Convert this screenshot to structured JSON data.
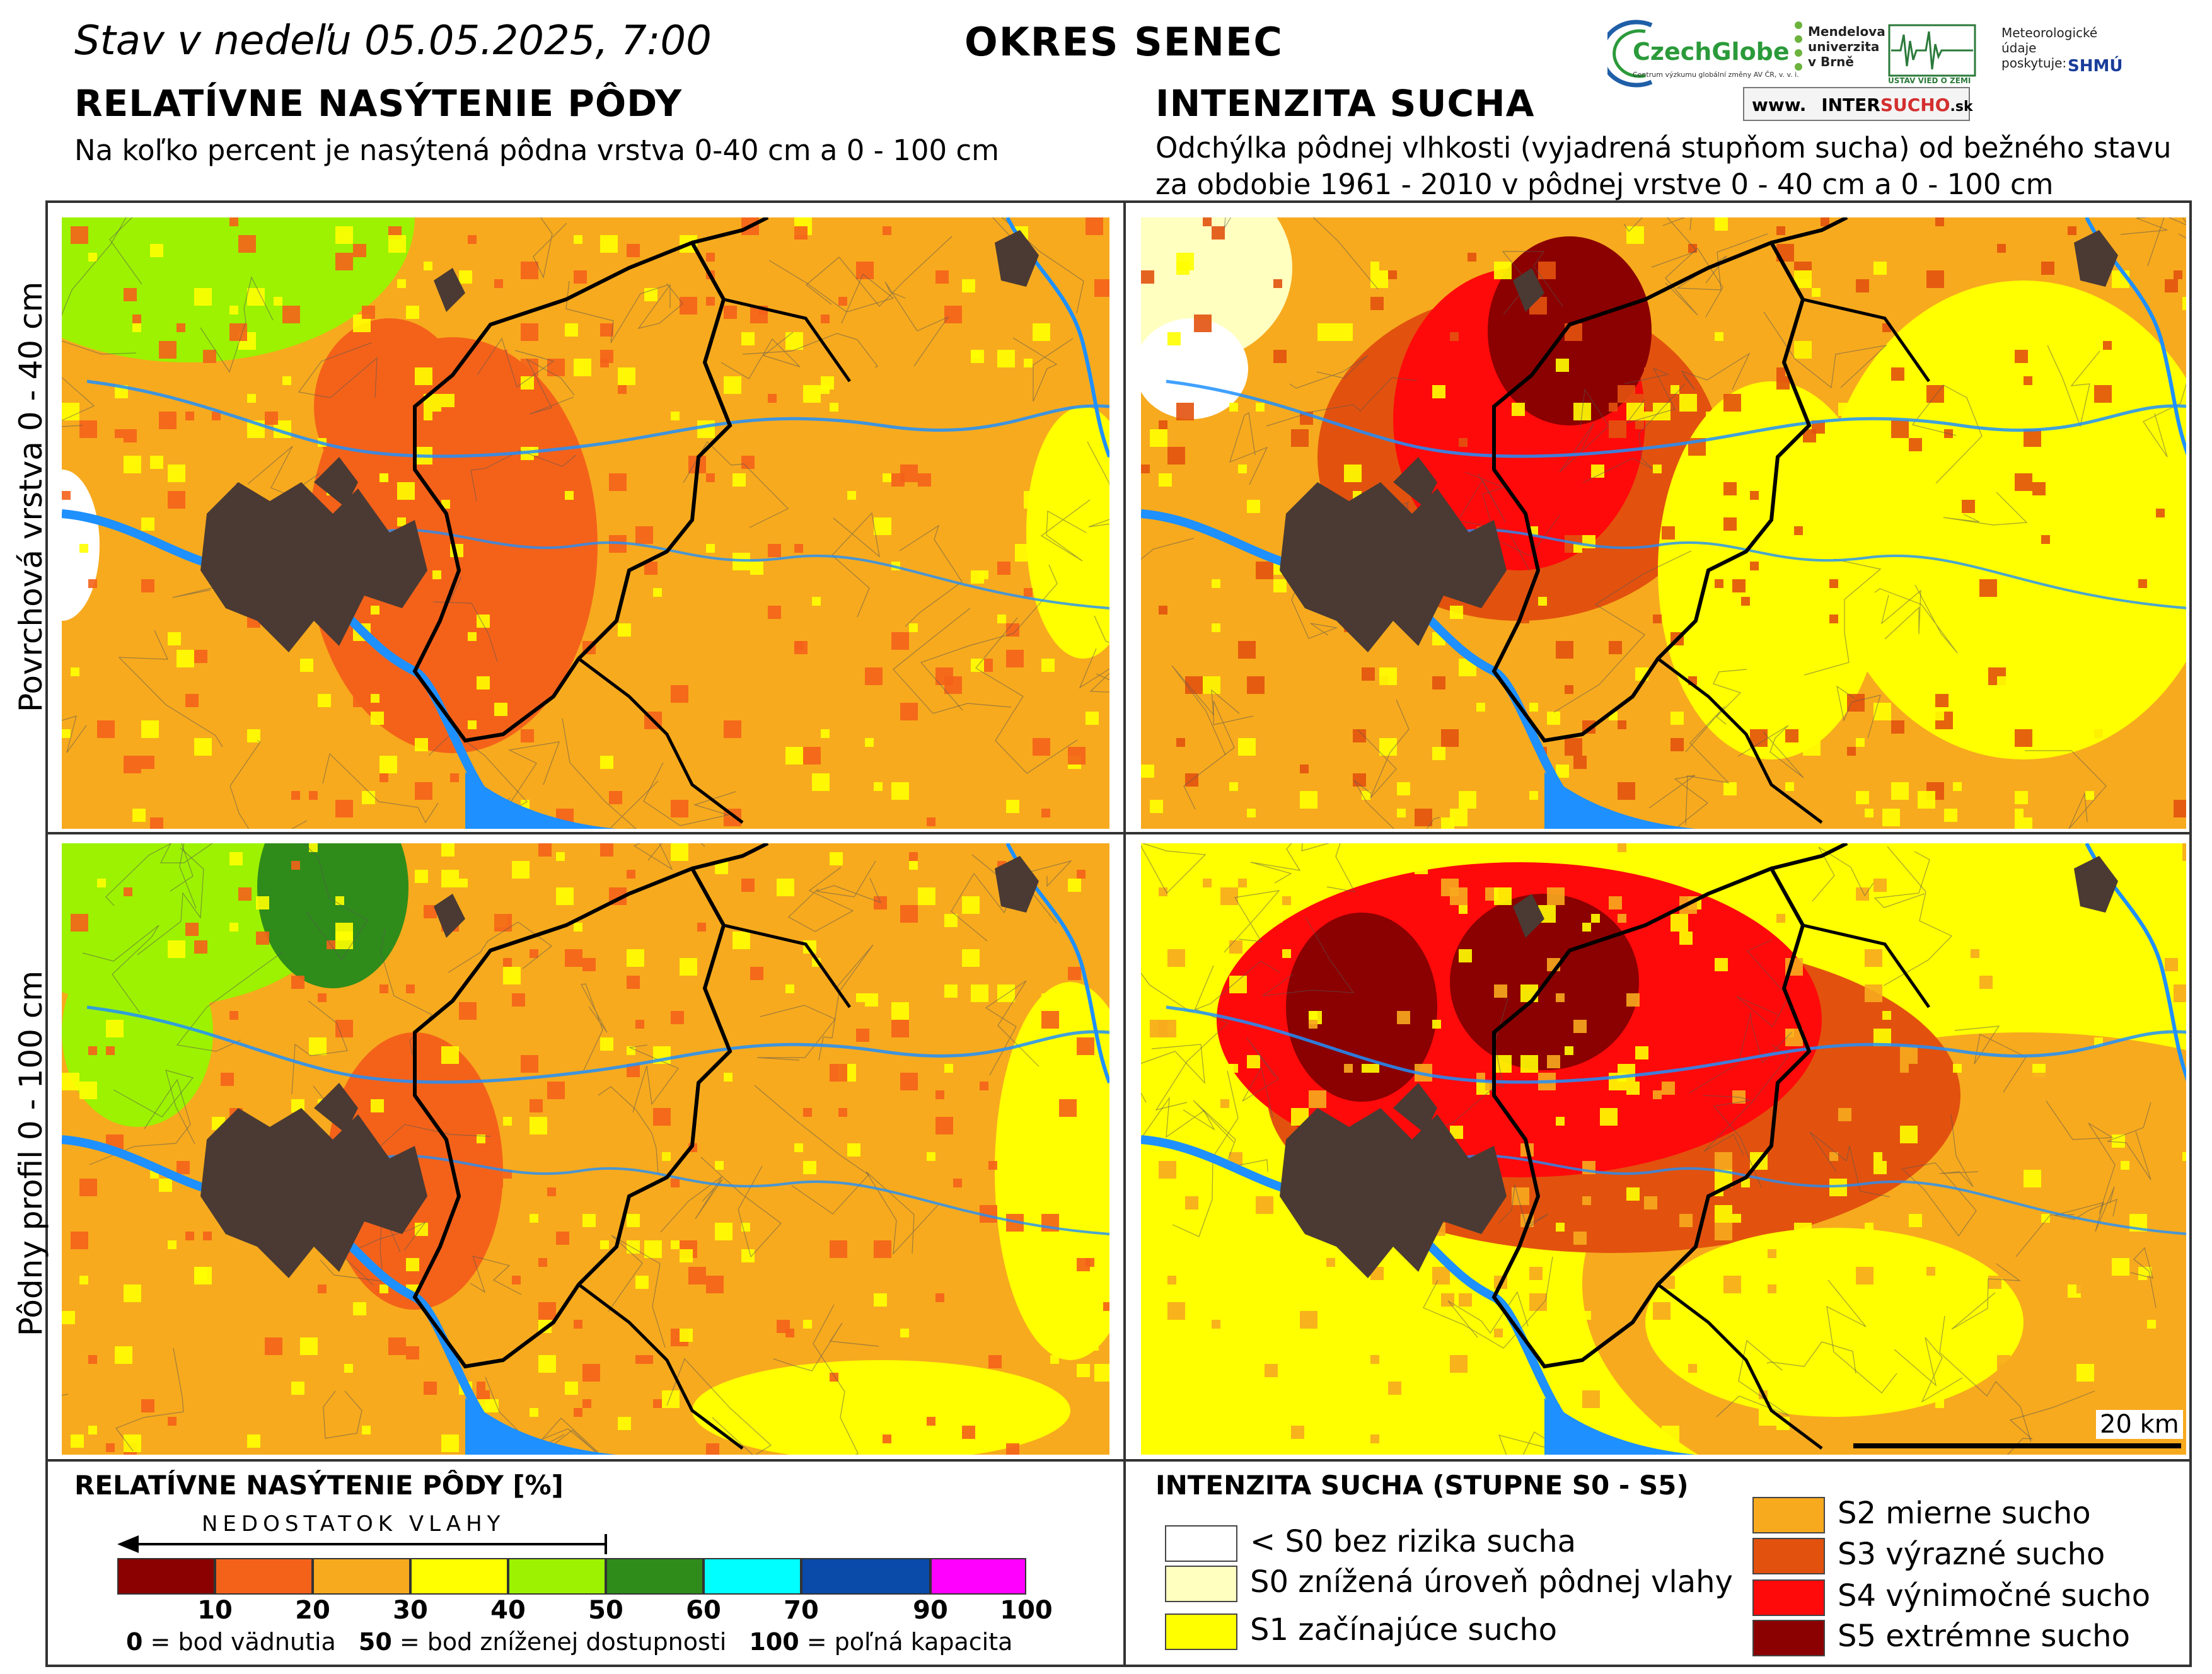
{
  "header": {
    "date_line": "Stav v nedeľu 05.05.2025, 7:00",
    "district": "OKRES SENEC"
  },
  "logos": {
    "czechglobe": "CzechGlobe",
    "czechglobe_sub": "Centrum výzkumu globální změny AV ČR, v. v. i.",
    "mendel": [
      "Mendelova",
      "univerzita",
      "v Brně"
    ],
    "uvz": "ÚSTAV VIED O ZEMI",
    "meteo": [
      "Meteorologické",
      "údaje",
      "poskytuje:"
    ],
    "shmu": "SHMÚ",
    "intersucho_prefix": "www.",
    "intersucho_a": "INTER",
    "intersucho_b": "SUCHO",
    "intersucho_suffix": ".sk"
  },
  "left_panel": {
    "title": "RELATÍVNE NASÝTENIE PÔDY",
    "subtitle": "Na koľko percent je nasýtená pôdna vrstva 0-40 cm a 0 - 100 cm"
  },
  "right_panel": {
    "title": "INTENZITA SUCHA",
    "subtitle_1": "Odchýlka pôdnej vlhkosti (vyjadrená stupňom sucha) od bežného stavu",
    "subtitle_2": "za obdobie 1961 - 2010 v pôdnej vrstve 0 - 40 cm a 0 - 100 cm"
  },
  "rows": {
    "top_label": "Povrchová vrstva 0 - 40 cm",
    "bottom_label": "Pôdny profil 0 - 100 cm"
  },
  "scale_bar": {
    "label": "20 km"
  },
  "legend_saturation": {
    "title": "RELATÍVNE NASÝTENIE PÔDY [%]",
    "arrow_label": "NEDOSTATOK VLAHY",
    "bins": [
      {
        "from": 0,
        "to": 10,
        "color": "#8b0000"
      },
      {
        "from": 10,
        "to": 20,
        "color": "#f4621a"
      },
      {
        "from": 20,
        "to": 30,
        "color": "#f7aa1e"
      },
      {
        "from": 30,
        "to": 40,
        "color": "#ffff00"
      },
      {
        "from": 40,
        "to": 50,
        "color": "#9cf200"
      },
      {
        "from": 50,
        "to": 60,
        "color": "#2f8c1a"
      },
      {
        "from": 60,
        "to": 70,
        "color": "#00ffff"
      },
      {
        "from": 70,
        "to": 90,
        "color": "#0a4aa8"
      },
      {
        "from": 90,
        "to": 100,
        "color": "#ff00ff"
      }
    ],
    "ticks": [
      "10",
      "20",
      "30",
      "40",
      "50",
      "60",
      "70",
      "90",
      "100"
    ],
    "note_0_val": "0",
    "note_0_text": " = bod vädnutia",
    "note_50_val": "50",
    "note_50_text": " = bod zníženej dostupnosti",
    "note_100_val": "100",
    "note_100_text": " = poľná kapacita"
  },
  "legend_drought": {
    "title": "INTENZITA SUCHA (STUPNE S0 - S5)",
    "classes": [
      {
        "label": "< S0 bez rizika sucha",
        "color": "#ffffff"
      },
      {
        "label": "S0 znížená úroveň pôdnej vlahy",
        "color": "#ffffc0"
      },
      {
        "label": "S1 začínajúce sucho",
        "color": "#ffff00"
      },
      {
        "label": "S2 mierne sucho",
        "color": "#f7aa1e"
      },
      {
        "label": "S3 výrazné sucho",
        "color": "#e2520e"
      },
      {
        "label": "S4 výnimočné sucho",
        "color": "#ff0a0a"
      },
      {
        "label": "S5 extrémne sucho",
        "color": "#8b0000"
      }
    ]
  },
  "map_colors": {
    "urban": "#4a3a33",
    "water": "#1e90ff",
    "border": "#000000"
  }
}
